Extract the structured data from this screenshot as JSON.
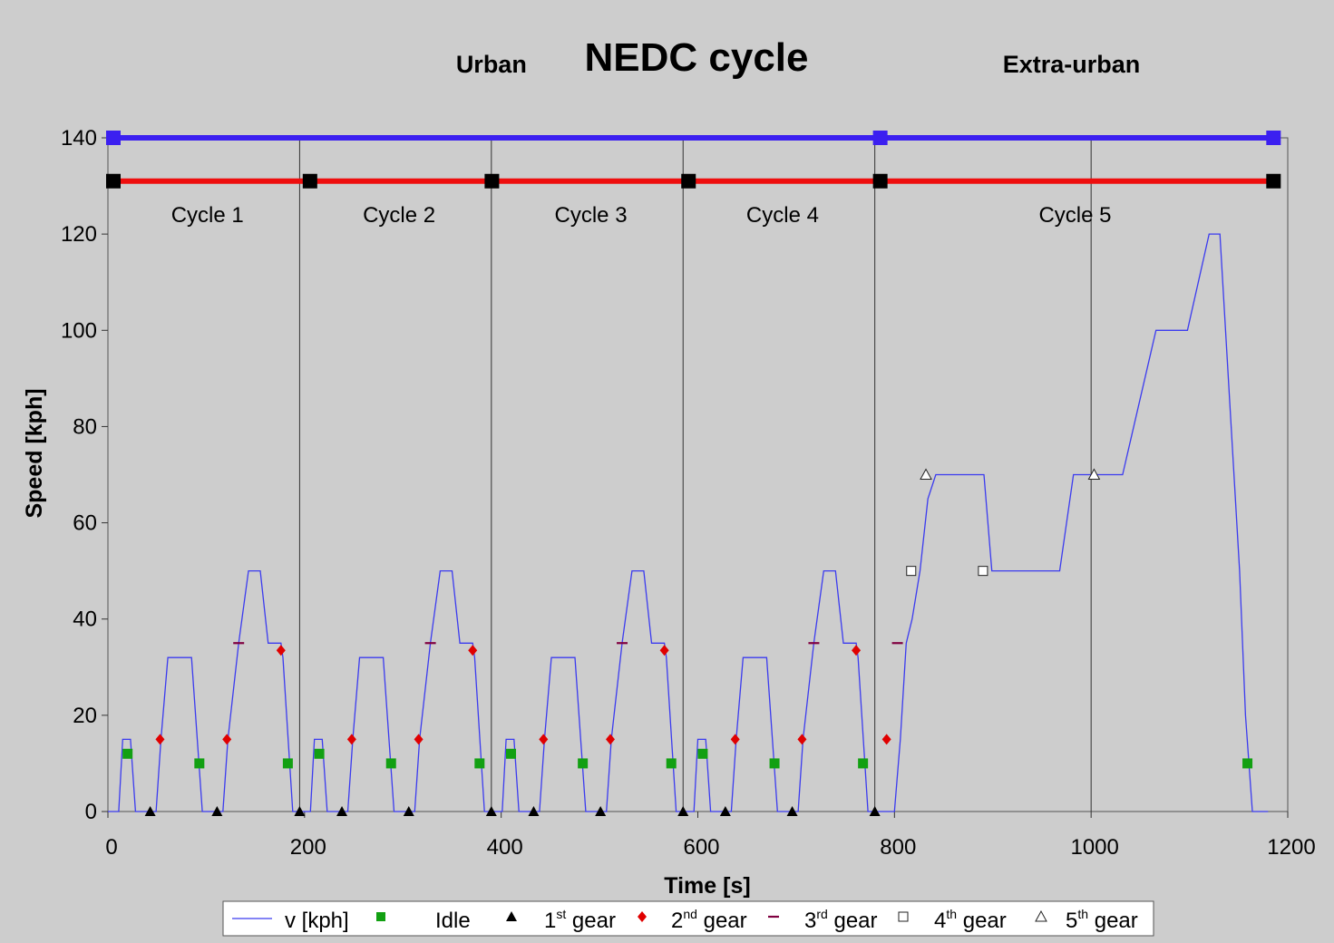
{
  "chart_data": {
    "type": "line",
    "title": "NEDC cycle",
    "xlabel": "Time [s]",
    "ylabel": "Speed  [kph]",
    "xlim": [
      0,
      1200
    ],
    "ylim": [
      0,
      140
    ],
    "xticks": [
      "0",
      "200",
      "400",
      "600",
      "800",
      "1000",
      "1200"
    ],
    "yticks": [
      "0",
      "20",
      "40",
      "60",
      "80",
      "100",
      "120",
      "140"
    ],
    "grid": "vertical lines at cycle boundaries",
    "legend_position": "bottom",
    "phases": [
      {
        "label": "Urban",
        "start": 0,
        "end": 780
      },
      {
        "label": "Extra-urban",
        "start": 780,
        "end": 1180
      }
    ],
    "cycles": [
      {
        "label": "Cycle 1",
        "start": 0,
        "end": 195
      },
      {
        "label": "Cycle 2",
        "start": 195,
        "end": 390
      },
      {
        "label": "Cycle 3",
        "start": 390,
        "end": 585
      },
      {
        "label": "Cycle 4",
        "start": 585,
        "end": 780
      },
      {
        "label": "Cycle 5",
        "start": 780,
        "end": 1180
      }
    ],
    "bars": [
      {
        "color": "#3b1ff0",
        "y": 140,
        "markers_x": [
          0,
          780,
          1180
        ]
      },
      {
        "color": "#ee0e0e",
        "y": 131,
        "markers_x": [
          0,
          200,
          385,
          585,
          780,
          1180
        ]
      }
    ],
    "urban_cycle": {
      "speed": [
        [
          0,
          0
        ],
        [
          11,
          0
        ],
        [
          15,
          15
        ],
        [
          23,
          15
        ],
        [
          28,
          0
        ],
        [
          49,
          0
        ],
        [
          54,
          15
        ],
        [
          61,
          32
        ],
        [
          85,
          32
        ],
        [
          96,
          0
        ],
        [
          117,
          0
        ],
        [
          122,
          15
        ],
        [
          133,
          35
        ],
        [
          143,
          50
        ],
        [
          155,
          50
        ],
        [
          163,
          35
        ],
        [
          176,
          35
        ],
        [
          178,
          32
        ],
        [
          188,
          0
        ],
        [
          195,
          0
        ]
      ],
      "markers": {
        "idle": [
          [
            20,
            12
          ],
          [
            93,
            10
          ],
          [
            183,
            10
          ]
        ],
        "gear1": [
          [
            43,
            0
          ],
          [
            111,
            0
          ],
          [
            195,
            0
          ]
        ],
        "gear2": [
          [
            53,
            15
          ],
          [
            121,
            15
          ],
          [
            176,
            33.5
          ]
        ],
        "gear3": [
          [
            133,
            35
          ]
        ]
      }
    },
    "extra_urban": {
      "speed": [
        [
          780,
          0
        ],
        [
          800,
          0
        ],
        [
          806,
          15
        ],
        [
          812,
          35
        ],
        [
          818,
          40
        ],
        [
          826,
          50
        ],
        [
          834,
          65
        ],
        [
          842,
          70
        ],
        [
          891,
          70
        ],
        [
          899,
          50
        ],
        [
          968,
          50
        ],
        [
          982,
          70
        ],
        [
          1032,
          70
        ],
        [
          1066,
          100
        ],
        [
          1098,
          100
        ],
        [
          1120,
          120
        ],
        [
          1131,
          120
        ],
        [
          1151,
          50
        ],
        [
          1157,
          20
        ],
        [
          1164,
          0
        ],
        [
          1180,
          0
        ]
      ],
      "markers": {
        "idle": [
          [
            1159,
            10
          ]
        ],
        "gear2": [
          [
            792,
            15
          ]
        ],
        "gear3": [
          [
            803,
            35
          ]
        ],
        "gear4": [
          [
            817,
            50
          ],
          [
            890,
            50
          ]
        ],
        "gear5": [
          [
            832,
            70
          ],
          [
            1003,
            70
          ]
        ]
      }
    },
    "series": [
      {
        "name": "v [kph]",
        "color": "#3b3bef"
      },
      {
        "name": "Idle",
        "color": "#12a012"
      },
      {
        "name": "1st gear",
        "color": "#000000"
      },
      {
        "name": "2nd gear",
        "color": "#e00000"
      },
      {
        "name": "3rd gear",
        "color": "#800040"
      },
      {
        "name": "4th gear",
        "color": "#ffffff"
      },
      {
        "name": "5th gear",
        "color": "#ffffff"
      }
    ],
    "legend": [
      {
        "pre": "v [kph]",
        "sup": "",
        "post": ""
      },
      {
        "pre": "Idle",
        "sup": "",
        "post": ""
      },
      {
        "pre": "1",
        "sup": "st",
        "post": " gear"
      },
      {
        "pre": "2",
        "sup": "nd",
        "post": " gear"
      },
      {
        "pre": "3",
        "sup": "rd",
        "post": " gear"
      },
      {
        "pre": "4",
        "sup": "th",
        "post": " gear"
      },
      {
        "pre": "5",
        "sup": "th",
        "post": " gear"
      }
    ]
  }
}
